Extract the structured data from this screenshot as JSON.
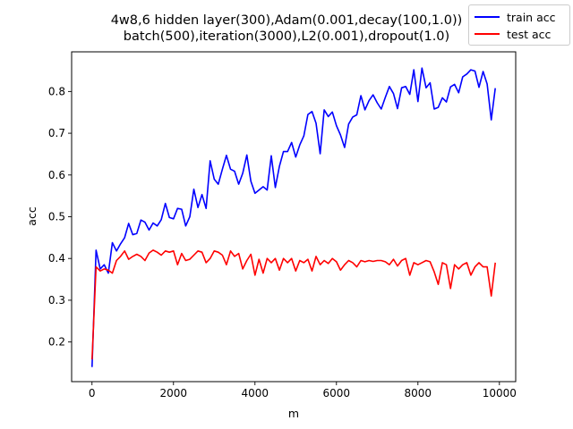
{
  "chart_data": {
    "type": "line",
    "title_lines": [
      "4w8,6 hidden layer(300),Adam(0.001,decay(100,1.0))",
      "batch(500),iteration(3000),L2(0.001),dropout(1.0)"
    ],
    "xlabel": "m",
    "ylabel": "acc",
    "xlim": [
      -500,
      10400
    ],
    "ylim": [
      0.105,
      0.895
    ],
    "xticks": [
      0,
      2000,
      4000,
      6000,
      8000,
      10000
    ],
    "yticks": [
      0.2,
      0.3,
      0.4,
      0.5,
      0.6,
      0.7,
      0.8
    ],
    "legend_position": "top-right",
    "grid": false,
    "x": [
      0,
      100,
      200,
      300,
      400,
      500,
      600,
      700,
      800,
      900,
      1000,
      1100,
      1200,
      1300,
      1400,
      1500,
      1600,
      1700,
      1800,
      1900,
      2000,
      2100,
      2200,
      2300,
      2400,
      2500,
      2600,
      2700,
      2800,
      2900,
      3000,
      3100,
      3200,
      3300,
      3400,
      3500,
      3600,
      3700,
      3800,
      3900,
      4000,
      4100,
      4200,
      4300,
      4400,
      4500,
      4600,
      4700,
      4800,
      4900,
      5000,
      5100,
      5200,
      5300,
      5400,
      5500,
      5600,
      5700,
      5800,
      5900,
      6000,
      6100,
      6200,
      6300,
      6400,
      6500,
      6600,
      6700,
      6800,
      6900,
      7000,
      7100,
      7200,
      7300,
      7400,
      7500,
      7600,
      7700,
      7800,
      7900,
      8000,
      8100,
      8200,
      8300,
      8400,
      8500,
      8600,
      8700,
      8800,
      8900,
      9000,
      9100,
      9200,
      9300,
      9400,
      9500,
      9600,
      9700,
      9800,
      9900
    ],
    "series": [
      {
        "name": "train acc",
        "color": "#0000ff",
        "values": [
          0.14,
          0.42,
          0.375,
          0.385,
          0.365,
          0.438,
          0.418,
          0.435,
          0.45,
          0.484,
          0.457,
          0.46,
          0.492,
          0.487,
          0.468,
          0.485,
          0.478,
          0.493,
          0.532,
          0.498,
          0.495,
          0.52,
          0.518,
          0.478,
          0.5,
          0.566,
          0.522,
          0.553,
          0.52,
          0.634,
          0.59,
          0.578,
          0.614,
          0.647,
          0.614,
          0.609,
          0.578,
          0.604,
          0.648,
          0.585,
          0.556,
          0.564,
          0.572,
          0.564,
          0.646,
          0.57,
          0.621,
          0.656,
          0.656,
          0.678,
          0.643,
          0.672,
          0.694,
          0.745,
          0.752,
          0.724,
          0.651,
          0.756,
          0.74,
          0.751,
          0.718,
          0.696,
          0.666,
          0.722,
          0.739,
          0.744,
          0.79,
          0.756,
          0.778,
          0.792,
          0.773,
          0.758,
          0.786,
          0.812,
          0.795,
          0.759,
          0.809,
          0.812,
          0.793,
          0.852,
          0.776,
          0.856,
          0.809,
          0.821,
          0.758,
          0.762,
          0.785,
          0.775,
          0.811,
          0.817,
          0.797,
          0.835,
          0.842,
          0.852,
          0.849,
          0.81,
          0.848,
          0.818,
          0.732,
          0.808
        ]
      },
      {
        "name": "test acc",
        "color": "#ff0000",
        "values": [
          0.158,
          0.38,
          0.37,
          0.375,
          0.372,
          0.365,
          0.395,
          0.405,
          0.418,
          0.398,
          0.405,
          0.41,
          0.405,
          0.395,
          0.413,
          0.42,
          0.415,
          0.408,
          0.418,
          0.415,
          0.418,
          0.385,
          0.412,
          0.395,
          0.398,
          0.408,
          0.418,
          0.415,
          0.39,
          0.4,
          0.418,
          0.415,
          0.408,
          0.385,
          0.418,
          0.405,
          0.412,
          0.375,
          0.395,
          0.41,
          0.36,
          0.398,
          0.365,
          0.4,
          0.39,
          0.4,
          0.372,
          0.4,
          0.39,
          0.4,
          0.37,
          0.395,
          0.39,
          0.398,
          0.37,
          0.405,
          0.385,
          0.395,
          0.388,
          0.4,
          0.392,
          0.372,
          0.385,
          0.395,
          0.39,
          0.38,
          0.395,
          0.392,
          0.395,
          0.393,
          0.395,
          0.395,
          0.392,
          0.385,
          0.398,
          0.382,
          0.395,
          0.4,
          0.36,
          0.39,
          0.385,
          0.39,
          0.395,
          0.392,
          0.368,
          0.338,
          0.39,
          0.385,
          0.328,
          0.385,
          0.375,
          0.385,
          0.39,
          0.36,
          0.38,
          0.39,
          0.38,
          0.38,
          0.31,
          0.39
        ]
      }
    ]
  }
}
